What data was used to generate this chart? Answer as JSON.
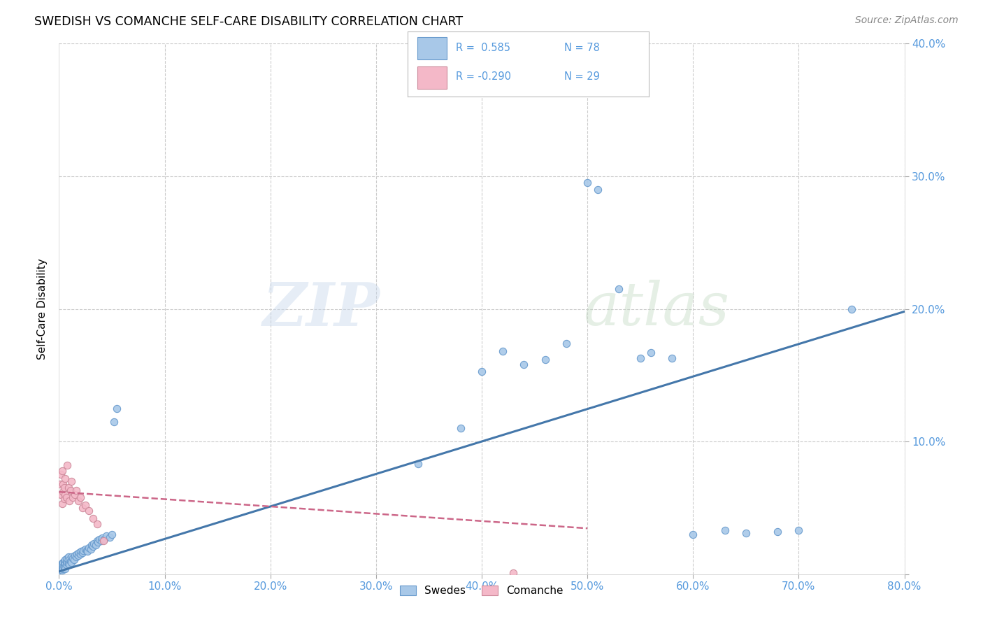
{
  "title": "SWEDISH VS COMANCHE SELF-CARE DISABILITY CORRELATION CHART",
  "source": "Source: ZipAtlas.com",
  "ylabel": "Self-Care Disability",
  "xlim": [
    0.0,
    0.8
  ],
  "ylim": [
    0.0,
    0.4
  ],
  "xticks": [
    0.0,
    0.1,
    0.2,
    0.3,
    0.4,
    0.5,
    0.6,
    0.7,
    0.8
  ],
  "yticks": [
    0.0,
    0.1,
    0.2,
    0.3,
    0.4
  ],
  "xtick_labels": [
    "0.0%",
    "10.0%",
    "20.0%",
    "30.0%",
    "40.0%",
    "50.0%",
    "60.0%",
    "70.0%",
    "80.0%"
  ],
  "ytick_labels_right": [
    "",
    "10.0%",
    "20.0%",
    "30.0%",
    "40.0%"
  ],
  "blue_fill": "#a8c8e8",
  "blue_edge": "#6699cc",
  "pink_fill": "#f4b8c8",
  "pink_edge": "#cc8899",
  "blue_line": "#4477aa",
  "pink_line": "#cc6688",
  "tick_color": "#5599dd",
  "R_blue": 0.585,
  "N_blue": 78,
  "R_pink": -0.29,
  "N_pink": 29,
  "legend_label_blue": "Swedes",
  "legend_label_pink": "Comanche",
  "blue_slope": 0.245,
  "blue_intercept": 0.002,
  "pink_slope": -0.055,
  "pink_intercept": 0.062,
  "swedes_x": [
    0.001,
    0.001,
    0.002,
    0.002,
    0.002,
    0.003,
    0.003,
    0.003,
    0.004,
    0.004,
    0.004,
    0.005,
    0.005,
    0.005,
    0.006,
    0.006,
    0.006,
    0.007,
    0.007,
    0.008,
    0.008,
    0.009,
    0.009,
    0.01,
    0.01,
    0.011,
    0.012,
    0.012,
    0.013,
    0.014,
    0.015,
    0.016,
    0.017,
    0.018,
    0.019,
    0.02,
    0.021,
    0.022,
    0.023,
    0.025,
    0.026,
    0.027,
    0.028,
    0.03,
    0.031,
    0.032,
    0.033,
    0.035,
    0.036,
    0.037,
    0.038,
    0.04,
    0.041,
    0.043,
    0.045,
    0.048,
    0.05,
    0.052,
    0.055,
    0.34,
    0.38,
    0.4,
    0.42,
    0.44,
    0.46,
    0.48,
    0.5,
    0.51,
    0.53,
    0.55,
    0.56,
    0.58,
    0.6,
    0.63,
    0.65,
    0.68,
    0.7,
    0.75
  ],
  "swedes_y": [
    0.005,
    0.003,
    0.006,
    0.004,
    0.007,
    0.005,
    0.008,
    0.003,
    0.006,
    0.009,
    0.004,
    0.007,
    0.01,
    0.005,
    0.008,
    0.011,
    0.004,
    0.007,
    0.01,
    0.009,
    0.012,
    0.008,
    0.013,
    0.007,
    0.011,
    0.01,
    0.013,
    0.009,
    0.012,
    0.011,
    0.014,
    0.013,
    0.015,
    0.014,
    0.016,
    0.015,
    0.017,
    0.016,
    0.018,
    0.019,
    0.018,
    0.017,
    0.02,
    0.019,
    0.022,
    0.021,
    0.023,
    0.022,
    0.025,
    0.024,
    0.026,
    0.025,
    0.027,
    0.026,
    0.029,
    0.028,
    0.03,
    0.115,
    0.125,
    0.083,
    0.11,
    0.153,
    0.168,
    0.158,
    0.162,
    0.174,
    0.295,
    0.29,
    0.215,
    0.163,
    0.167,
    0.163,
    0.03,
    0.033,
    0.031,
    0.032,
    0.033,
    0.2
  ],
  "comanche_x": [
    0.001,
    0.002,
    0.002,
    0.003,
    0.003,
    0.004,
    0.004,
    0.005,
    0.005,
    0.006,
    0.006,
    0.007,
    0.008,
    0.009,
    0.01,
    0.011,
    0.012,
    0.013,
    0.015,
    0.016,
    0.018,
    0.02,
    0.022,
    0.025,
    0.028,
    0.032,
    0.036,
    0.042,
    0.43
  ],
  "comanche_y": [
    0.068,
    0.06,
    0.075,
    0.053,
    0.078,
    0.062,
    0.068,
    0.057,
    0.065,
    0.06,
    0.072,
    0.058,
    0.082,
    0.065,
    0.055,
    0.063,
    0.07,
    0.058,
    0.06,
    0.063,
    0.055,
    0.058,
    0.05,
    0.052,
    0.048,
    0.042,
    0.038,
    0.025,
    0.001
  ]
}
